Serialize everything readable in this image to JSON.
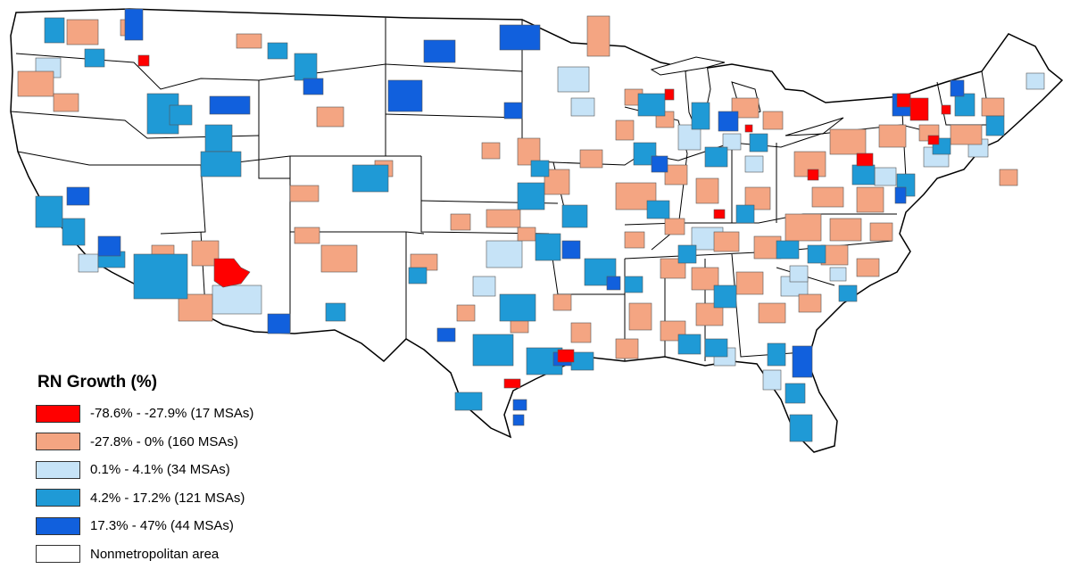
{
  "legend": {
    "title": "RN Growth (%)",
    "items": [
      {
        "label": "-78.6% - -27.9% (17 MSAs)",
        "color": "#ff0000",
        "msa_count": 17,
        "range_pct": [
          -78.6,
          -27.9
        ]
      },
      {
        "label": "-27.8% - 0% (160 MSAs)",
        "color": "#f4a582",
        "msa_count": 160,
        "range_pct": [
          -27.8,
          0
        ]
      },
      {
        "label": "0.1% - 4.1% (34 MSAs)",
        "color": "#c6e3f7",
        "msa_count": 34,
        "range_pct": [
          0.1,
          4.1
        ]
      },
      {
        "label": "4.2% - 17.2% (121 MSAs)",
        "color": "#1f9ad6",
        "msa_count": 121,
        "range_pct": [
          4.2,
          17.2
        ]
      },
      {
        "label": "17.3% - 47% (44 MSAs)",
        "color": "#1160dd",
        "msa_count": 44,
        "range_pct": [
          17.3,
          47
        ]
      },
      {
        "label": "Nonmetropolitan area",
        "color": "#ffffff"
      }
    ]
  },
  "map": {
    "region": "contiguous-united-states",
    "background_color": "#ffffff",
    "border_color": "#000000",
    "msa_border_color": "#555555"
  }
}
